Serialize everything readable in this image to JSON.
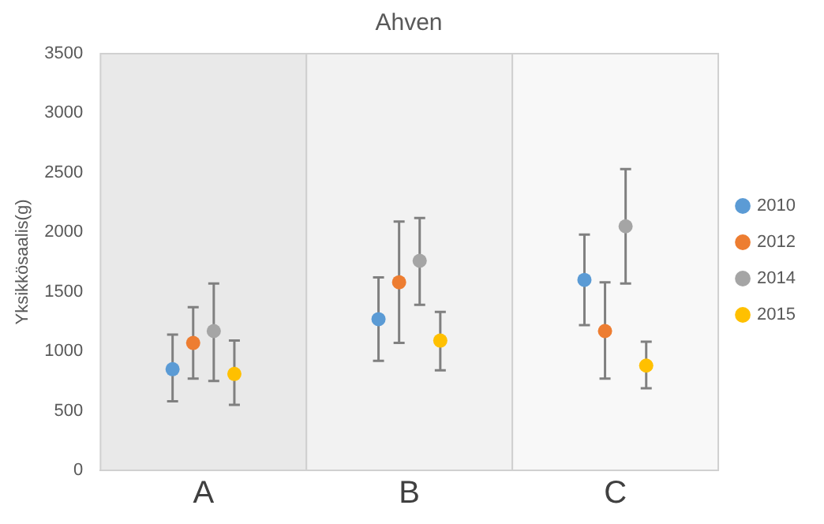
{
  "chart_data": {
    "type": "scatter",
    "title": "Ahven",
    "ylabel": "Yksikkösaalis(g)",
    "categories": [
      "A",
      "B",
      "C"
    ],
    "series": [
      {
        "name": "2010",
        "color": "#5b9bd5",
        "values": [
          850,
          1270,
          1600
        ],
        "errors": [
          [
            580,
            1140
          ],
          [
            920,
            1620
          ],
          [
            1220,
            1980
          ]
        ]
      },
      {
        "name": "2012",
        "color": "#ed7d31",
        "values": [
          1070,
          1580,
          1170
        ],
        "errors": [
          [
            770,
            1370
          ],
          [
            1070,
            2090
          ],
          [
            770,
            1580
          ]
        ]
      },
      {
        "name": "2014",
        "color": "#a5a5a5",
        "values": [
          1170,
          1760,
          2050
        ],
        "errors": [
          [
            750,
            1570
          ],
          [
            1390,
            2120
          ],
          [
            1570,
            2530
          ]
        ]
      },
      {
        "name": "2015",
        "color": "#ffc000",
        "values": [
          810,
          1090,
          880
        ],
        "errors": [
          [
            550,
            1090
          ],
          [
            840,
            1330
          ],
          [
            690,
            1080
          ]
        ]
      }
    ],
    "bands": [
      {
        "axis": "x",
        "from": "A",
        "to": "A",
        "color": "#e9e9e9"
      },
      {
        "axis": "x",
        "from": "B",
        "to": "B",
        "color": "#f2f2f2"
      },
      {
        "axis": "x",
        "from": "C",
        "to": "C",
        "color": "#f8f8f8"
      }
    ],
    "ylim": [
      0,
      3500
    ],
    "yticks": [
      0,
      500,
      1000,
      1500,
      2000,
      2500,
      3000,
      3500
    ],
    "grid": false,
    "legend": "right",
    "marker": "circle"
  }
}
